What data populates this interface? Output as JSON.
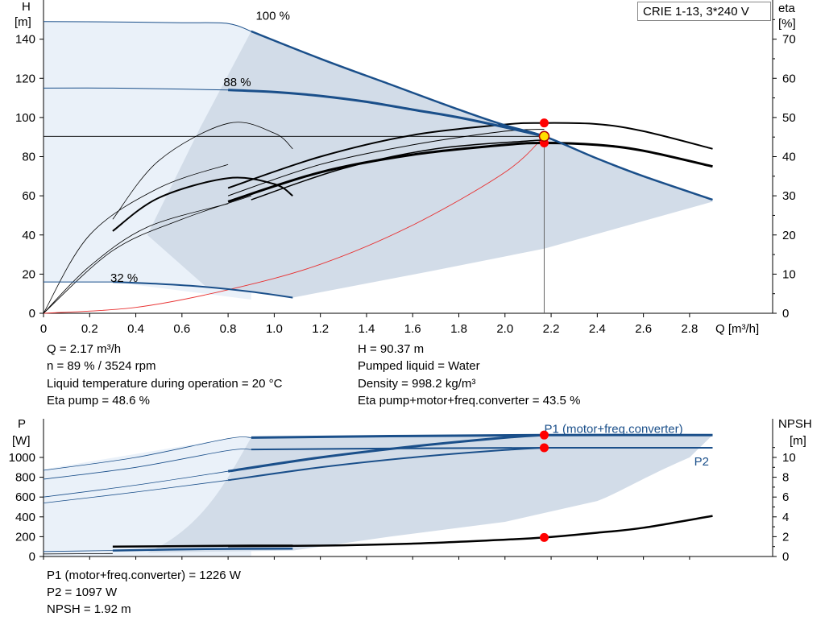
{
  "model_label": "CRIE 1-13, 3*240 V",
  "colors": {
    "curve_blue": "#1a4f8a",
    "area_fill": "#d2dce8",
    "area_light": "#eaf1f9",
    "system_red": "#e83030",
    "marker_red": "#ff0000",
    "marker_yellow": "#ffdd00"
  },
  "chart_data": [
    {
      "type": "line",
      "id": "head",
      "xlabel": "Q [m³/h]",
      "ylabel_left": [
        "H",
        "[m]"
      ],
      "ylabel_right": [
        "eta",
        "[%]"
      ],
      "x_ticks": [
        "0",
        "0.2",
        "0.4",
        "0.6",
        "0.8",
        "1.0",
        "1.2",
        "1.4",
        "1.6",
        "1.8",
        "2.0",
        "2.2",
        "2.4",
        "2.6",
        "2.8"
      ],
      "x_tick_values": [
        0,
        0.2,
        0.4,
        0.6,
        0.8,
        1.0,
        1.2,
        1.4,
        1.6,
        1.8,
        2.0,
        2.2,
        2.4,
        2.6,
        2.8
      ],
      "y_ticks": [
        "0",
        "20",
        "40",
        "60",
        "80",
        "100",
        "120",
        "140"
      ],
      "y_tick_values": [
        0,
        20,
        40,
        60,
        80,
        100,
        120,
        140
      ],
      "y2_ticks": [
        "0",
        "10",
        "20",
        "30",
        "40",
        "50",
        "60",
        "70"
      ],
      "y2_tick_values": [
        0,
        10,
        20,
        30,
        40,
        50,
        60,
        70
      ],
      "xlim": [
        0,
        3.16
      ],
      "ylim": [
        0,
        160
      ],
      "y2lim": [
        0,
        80
      ],
      "speed_labels": [
        {
          "text": "100 %",
          "x": 0.92,
          "y": 152
        },
        {
          "text": "88 %",
          "x": 0.78,
          "y": 118
        },
        {
          "text": "32 %",
          "x": 0.29,
          "y": 18
        }
      ],
      "head_curves": [
        {
          "speed": "100 %",
          "x": [
            0.9,
            1.2,
            1.5,
            1.8,
            2.0,
            2.17,
            2.4,
            2.6,
            2.9
          ],
          "y": [
            144,
            130,
            117,
            104,
            96,
            90.4,
            79,
            70,
            58
          ],
          "width": 2.5
        },
        {
          "speed": "88 %",
          "x": [
            0.8,
            1.0,
            1.2,
            1.4,
            1.6,
            1.8,
            2.0,
            2.17
          ],
          "y": [
            114,
            113,
            111,
            108,
            104,
            100,
            95,
            90.4
          ],
          "width": 3
        },
        {
          "speed": "32 %",
          "x": [
            0.3,
            0.5,
            0.7,
            0.9,
            1.08
          ],
          "y": [
            16,
            15,
            13.5,
            11,
            8
          ],
          "width": 2
        },
        {
          "speed": "100 % shut-off",
          "x": [
            0,
            0.3,
            0.6,
            0.8,
            0.9
          ],
          "y": [
            149,
            148.8,
            148.4,
            148,
            144
          ],
          "width": 1
        },
        {
          "speed": "88 % shut-off",
          "x": [
            0,
            0.3,
            0.6,
            0.8
          ],
          "y": [
            115,
            115,
            114.5,
            114
          ],
          "width": 1
        },
        {
          "speed": "32 % shut-off",
          "x": [
            0,
            0.15,
            0.3
          ],
          "y": [
            16,
            16,
            16
          ],
          "width": 1
        }
      ],
      "eta_curves": [
        {
          "name": "eta upper",
          "x": [
            0.8,
            1.2,
            1.6,
            2.0,
            2.17,
            2.4,
            2.6,
            2.9
          ],
          "y": [
            32,
            40,
            45.5,
            48.2,
            48.6,
            48.3,
            46.5,
            42
          ],
          "width": 2
        },
        {
          "name": "eta lower",
          "x": [
            0.8,
            1.2,
            1.6,
            2.0,
            2.17,
            2.4,
            2.6,
            2.9
          ],
          "y": [
            28.5,
            36,
            40.5,
            43,
            43.5,
            43,
            41.5,
            37.5
          ],
          "width": 3
        },
        {
          "name": "eta thin a",
          "x": [
            0.8,
            1.2,
            1.6,
            2.0,
            2.17
          ],
          "y": [
            30,
            38,
            43,
            46.5,
            47
          ],
          "width": 1
        },
        {
          "name": "eta thin b",
          "x": [
            0.9,
            1.3,
            1.7,
            2.1,
            2.17
          ],
          "y": [
            29,
            37,
            42,
            44,
            44.2
          ],
          "width": 1.5
        },
        {
          "name": "eta low speed",
          "x": [
            0.3,
            0.5,
            0.8,
            1.0,
            1.08
          ],
          "y": [
            21,
            29.5,
            34.5,
            33,
            30
          ],
          "width": 2
        },
        {
          "name": "eta thin bell",
          "x": [
            0.3,
            0.5,
            0.8,
            1.0,
            1.08
          ],
          "y": [
            24,
            39,
            48.5,
            46,
            42
          ],
          "width": 0.8
        },
        {
          "name": "eta origin a",
          "x": [
            0,
            0.2,
            0.45,
            0.8
          ],
          "y": [
            0,
            12,
            22,
            28
          ],
          "width": 0.8
        },
        {
          "name": "eta origin b",
          "x": [
            0,
            0.3,
            0.6,
            0.9
          ],
          "y": [
            0,
            16,
            24,
            30
          ],
          "width": 0.8
        },
        {
          "name": "eta origin c",
          "x": [
            0,
            0.2,
            0.5,
            0.8
          ],
          "y": [
            0,
            20,
            32,
            38
          ],
          "width": 0.8
        }
      ],
      "system_curve": {
        "x": [
          0,
          0.4,
          0.8,
          1.2,
          1.6,
          2.0,
          2.17
        ],
        "y": [
          0,
          3,
          12,
          25,
          45,
          72,
          90.4
        ]
      },
      "operating_point": {
        "q": 2.17,
        "h": 90.37,
        "eta_pump": 48.6,
        "eta_total": 43.5
      },
      "info_left": [
        "Q = 2.17 m³/h",
        "n = 89 % / 3524 rpm",
        "Liquid temperature during operation = 20 °C",
        "Eta pump = 48.6 %"
      ],
      "info_right": [
        "H = 90.37 m",
        "Pumped liquid = Water",
        "Density = 998.2 kg/m³",
        "Eta pump+motor+freq.converter = 43.5 %"
      ]
    },
    {
      "type": "line",
      "id": "power",
      "ylabel_left": [
        "P",
        "[W]"
      ],
      "ylabel_right": [
        "NPSH",
        "[m]"
      ],
      "y_ticks": [
        "0",
        "200",
        "400",
        "600",
        "800",
        "1000"
      ],
      "y_tick_values": [
        0,
        200,
        400,
        600,
        800,
        1000
      ],
      "y2_ticks": [
        "0",
        "2",
        "4",
        "6",
        "8",
        "10"
      ],
      "y2_tick_values": [
        0,
        2,
        4,
        6,
        8,
        10
      ],
      "xlim": [
        0,
        3.16
      ],
      "ylim": [
        0,
        1390
      ],
      "y2lim": [
        0,
        13.9
      ],
      "series_labels": [
        {
          "text": "P1 (motor+freq.converter)",
          "x": 2.17,
          "y": 1290
        },
        {
          "text": "P2",
          "x": 2.82,
          "y": 960
        }
      ],
      "power_curves": [
        {
          "name": "P1 (motor+freq.converter)",
          "x": [
            0.9,
            1.5,
            2.17,
            2.9
          ],
          "y": [
            1200,
            1215,
            1226,
            1226
          ],
          "width": 3
        },
        {
          "name": "P2",
          "x": [
            0.9,
            1.5,
            2.17,
            2.9
          ],
          "y": [
            1080,
            1090,
            1097,
            1097
          ],
          "width": 2
        },
        {
          "name": "P1 88 %",
          "x": [
            0.8,
            1.2,
            1.6,
            2.0,
            2.17
          ],
          "y": [
            860,
            1000,
            1110,
            1200,
            1226
          ],
          "width": 3
        },
        {
          "name": "P2 88 %",
          "x": [
            0.8,
            1.2,
            1.6,
            2.0,
            2.17
          ],
          "y": [
            770,
            900,
            1000,
            1075,
            1097
          ],
          "width": 2
        },
        {
          "name": "P1 shut-off",
          "x": [
            0,
            0.4,
            0.8,
            0.9
          ],
          "y": [
            870,
            1000,
            1190,
            1200
          ],
          "width": 0.8
        },
        {
          "name": "P2 shut-off",
          "x": [
            0,
            0.4,
            0.8,
            0.9
          ],
          "y": [
            780,
            900,
            1070,
            1080
          ],
          "width": 0.8
        },
        {
          "name": "P1 88 shut-off",
          "x": [
            0,
            0.4,
            0.8
          ],
          "y": [
            600,
            720,
            860
          ],
          "width": 0.8
        },
        {
          "name": "P2 88 shut-off",
          "x": [
            0,
            0.4,
            0.8
          ],
          "y": [
            540,
            650,
            770
          ],
          "width": 0.8
        },
        {
          "name": "P 32 %",
          "x": [
            0.3,
            0.7,
            1.08
          ],
          "y": [
            60,
            75,
            80
          ],
          "width": 2.5
        },
        {
          "name": "P 32 % thin",
          "x": [
            0,
            0.3
          ],
          "y": [
            50,
            60
          ],
          "width": 0.8
        }
      ],
      "npsh_curves": [
        {
          "name": "NPSH",
          "x": [
            0.8,
            1.2,
            1.6,
            2.0,
            2.17,
            2.4,
            2.6,
            2.9
          ],
          "y": [
            1.05,
            1.1,
            1.3,
            1.7,
            1.92,
            2.4,
            2.9,
            4.1
          ],
          "width": 2.5
        },
        {
          "name": "NPSH low",
          "x": [
            0.3,
            0.6,
            0.9,
            1.08
          ],
          "y": [
            1.0,
            1.05,
            1.1,
            1.1
          ],
          "width": 2.5
        },
        {
          "name": "NPSH thin",
          "x": [
            0,
            0.3
          ],
          "y": [
            0.25,
            0.3
          ],
          "width": 0.8
        }
      ],
      "operating_point": {
        "p1": 1226,
        "p2": 1097,
        "npsh": 1.92
      },
      "info": [
        "P1 (motor+freq.converter) = 1226 W",
        "P2 = 1097 W",
        "NPSH = 1.92 m"
      ]
    }
  ]
}
